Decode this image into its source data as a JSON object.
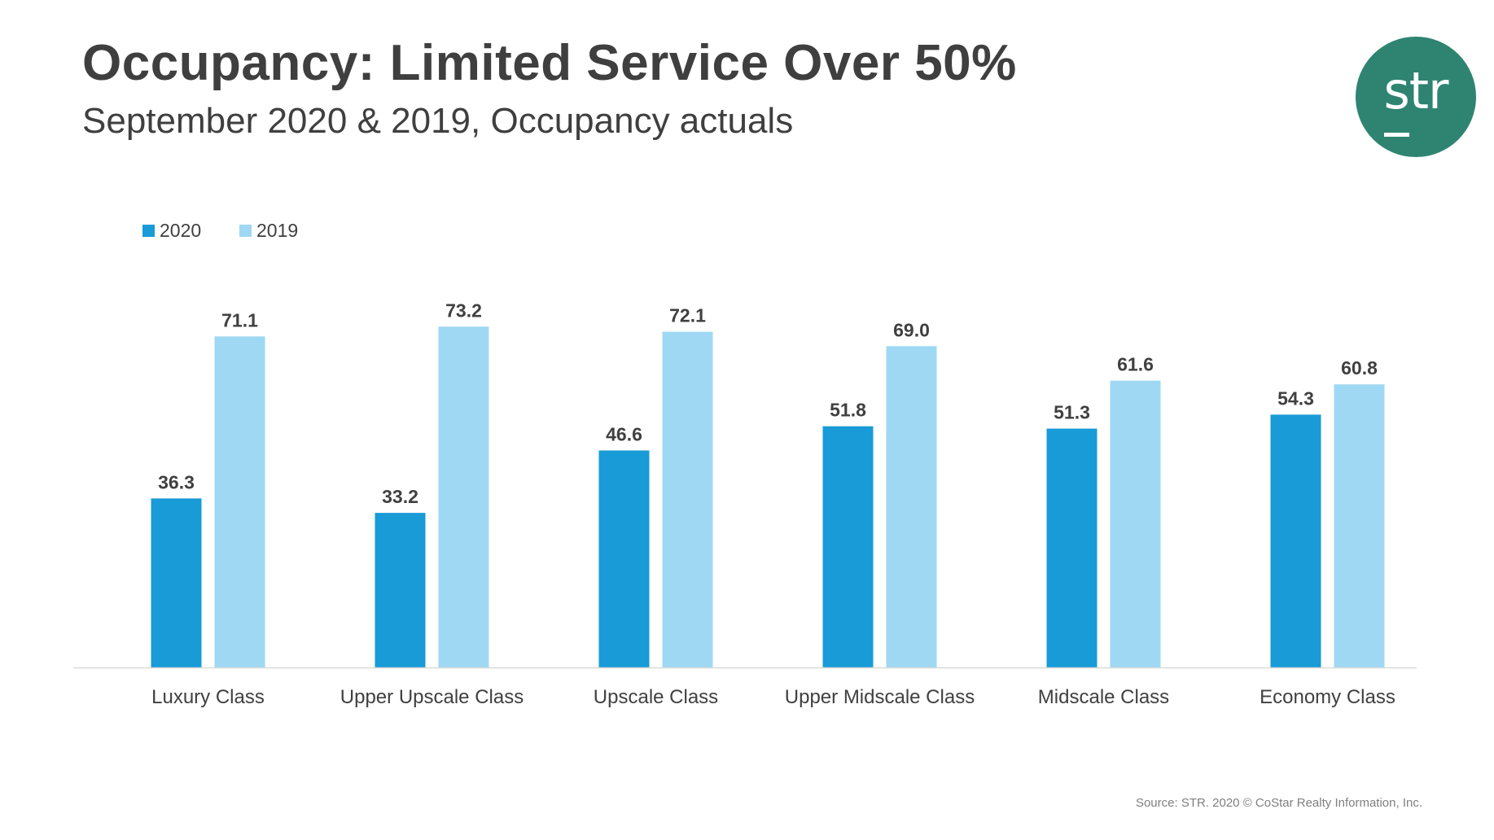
{
  "header": {
    "title": "Occupancy: Limited Service Over 50%",
    "subtitle": "September 2020 & 2019, Occupancy actuals"
  },
  "logo": {
    "text": "str",
    "background_color": "#2e8470"
  },
  "footer": {
    "source": "Source: STR. 2020 © CoStar Realty Information, Inc."
  },
  "chart_data": {
    "type": "bar",
    "title": "Occupancy: Limited Service Over 50%",
    "subtitle": "September 2020 & 2019, Occupancy actuals",
    "xlabel": "",
    "ylabel": "",
    "ylim": [
      0,
      80
    ],
    "grid": false,
    "legend_position": "top-left",
    "categories": [
      "Luxury Class",
      "Upper Upscale Class",
      "Upscale Class",
      "Upper Midscale Class",
      "Midscale Class",
      "Economy Class"
    ],
    "series": [
      {
        "name": "2020",
        "color": "#189bd6",
        "values": [
          36.3,
          33.2,
          46.6,
          51.8,
          51.3,
          54.3
        ],
        "labels": [
          "36.3",
          "33.2",
          "46.6",
          "51.8",
          "51.3",
          "54.3"
        ]
      },
      {
        "name": "2019",
        "color": "#9fd8f3",
        "values": [
          71.1,
          73.2,
          72.1,
          69.0,
          61.6,
          60.8
        ],
        "labels": [
          "71.1",
          "73.2",
          "72.1",
          "69.0",
          "61.6",
          "60.8"
        ]
      }
    ]
  }
}
